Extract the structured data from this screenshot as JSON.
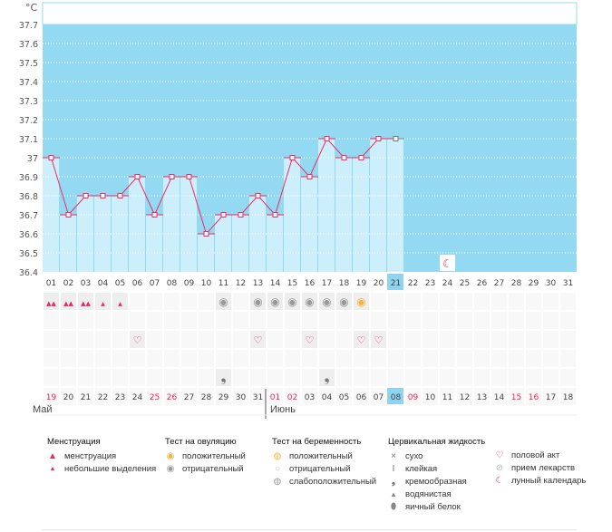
{
  "chart_data": {
    "type": "bar",
    "ylabel": "°C",
    "ylim": [
      36.4,
      37.7
    ],
    "yticks": [
      "37.7",
      "37.6",
      "37.5",
      "37.4",
      "37.3",
      "37.2",
      "37.1",
      "37",
      "36.9",
      "36.8",
      "36.7",
      "36.6",
      "36.5",
      "36.4"
    ],
    "cycle_days": [
      "01",
      "02",
      "03",
      "04",
      "05",
      "06",
      "07",
      "08",
      "09",
      "10",
      "11",
      "12",
      "13",
      "14",
      "15",
      "16",
      "17",
      "18",
      "19",
      "20",
      "21",
      "22",
      "23",
      "24",
      "25",
      "26",
      "27",
      "28",
      "29",
      "30",
      "31"
    ],
    "temperatures": [
      37.0,
      36.7,
      36.8,
      36.8,
      36.8,
      36.9,
      36.7,
      36.9,
      36.9,
      36.6,
      36.7,
      36.7,
      36.8,
      36.7,
      37.0,
      36.9,
      37.1,
      37.0,
      37.0,
      37.1,
      37.1
    ],
    "current_day_index": 20,
    "dates": [
      "19",
      "20",
      "21",
      "22",
      "23",
      "24",
      "25",
      "26",
      "27",
      "28",
      "29",
      "30",
      "31",
      "01",
      "02",
      "03",
      "04",
      "05",
      "06",
      "07",
      "08",
      "09",
      "10",
      "11",
      "12",
      "13",
      "14",
      "15",
      "16",
      "17",
      "18"
    ],
    "weekend_date_indices": [
      0,
      6,
      7,
      13,
      14,
      21,
      27,
      28
    ],
    "months": [
      {
        "label": "Май"
      },
      {
        "label": "Июнь"
      }
    ],
    "menstruation": {
      "0": "heavy",
      "1": "heavy",
      "2": "heavy",
      "3": "light",
      "4": "light"
    },
    "ovulation_test": {
      "10": "negative",
      "12": "negative",
      "13": "negative",
      "14": "negative",
      "15": "negative",
      "16": "negative",
      "17": "negative",
      "18": "positive"
    },
    "intercourse_days": [
      5,
      12,
      15,
      18,
      19
    ],
    "cervical_fluid": {
      "10": "creamy",
      "16": "creamy"
    },
    "moon_day_index": 23
  },
  "legend": {
    "menstruation": {
      "title": "Менструация",
      "items": [
        "менструация",
        "небольшие выделения"
      ]
    },
    "ovulation": {
      "title": "Тест на овуляцию",
      "items": [
        "положительный",
        "отрицательный"
      ]
    },
    "pregnancy": {
      "title": "Тест на беременность",
      "items": [
        "положительный",
        "отрицательный",
        "слабоположительный"
      ]
    },
    "fluid": {
      "title": "Цервикальная жидкость",
      "items": [
        "сухо",
        "клейкая",
        "кремообразная",
        "водянистая",
        "яичный белок"
      ]
    },
    "other": {
      "items": [
        "половой акт",
        "прием лекарств",
        "лунный календарь"
      ]
    }
  },
  "colors": {
    "dark": "#94d9f2",
    "light": "#cdeefb",
    "line": "#ee2b62",
    "pink": "#e8265e",
    "current": "#8fd3ef"
  }
}
